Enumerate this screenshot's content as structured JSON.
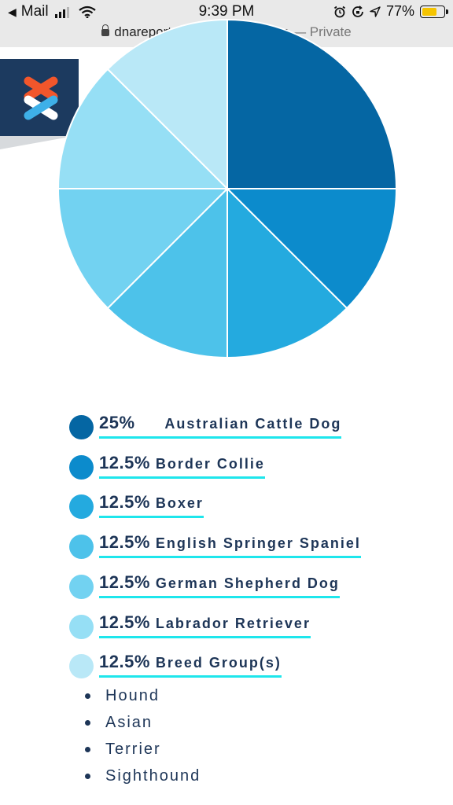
{
  "status_bar": {
    "back_app": "Mail",
    "time": "9:39 PM",
    "battery_percent": "77%",
    "battery_level": 0.77,
    "url": "dnareports.wisdompanel.com",
    "private_label": "— Private"
  },
  "icons": [
    "back-arrow-icon",
    "cellular-signal-icon",
    "wifi-icon",
    "alarm-icon",
    "screen-rotation-lock-icon",
    "location-arrow-icon",
    "battery-icon",
    "lock-icon",
    "wisdom-panel-logo-icon"
  ],
  "colors": {
    "accent_underline": "#1ee6ec",
    "text_navy": "#1d3557",
    "logo_bg": "#1c3a5f"
  },
  "chart_data": {
    "type": "pie",
    "categories": [
      "Australian Cattle Dog",
      "Border Collie",
      "Boxer",
      "English Springer Spaniel",
      "German Shepherd Dog",
      "Labrador Retriever",
      "Breed Group(s)"
    ],
    "values": [
      25,
      12.5,
      12.5,
      12.5,
      12.5,
      12.5,
      12.5
    ],
    "labels": [
      "25%",
      "12.5%",
      "12.5%",
      "12.5%",
      "12.5%",
      "12.5%",
      "12.5%"
    ],
    "colors": [
      "#0566a3",
      "#0c8bcc",
      "#24aadf",
      "#4dc2ea",
      "#72d2f1",
      "#96dff5",
      "#b9e8f7"
    ]
  },
  "breed_groups": [
    "Hound",
    "Asian",
    "Terrier",
    "Sighthound"
  ]
}
